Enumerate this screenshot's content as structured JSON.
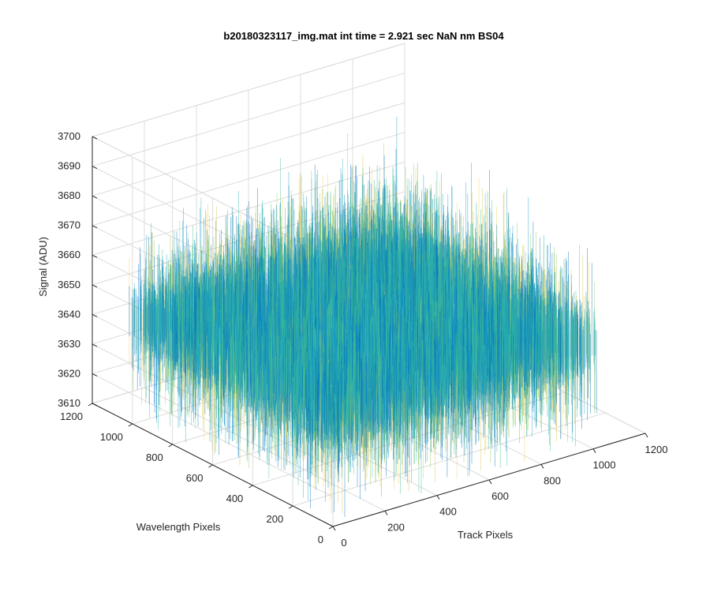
{
  "chart_data": {
    "type": "surface",
    "title": "b20180323117_img.mat int time = 2.921 sec  NaN nm BS04",
    "xlabel": "Track Pixels",
    "ylabel": "Wavelength Pixels",
    "zlabel": "Signal (ADU)",
    "xlim": [
      0,
      1200
    ],
    "ylim": [
      0,
      1200
    ],
    "zlim": [
      3610,
      3700
    ],
    "xticks": [
      "0",
      "200",
      "400",
      "600",
      "800",
      "1000",
      "1200"
    ],
    "yticks": [
      "0",
      "200",
      "400",
      "600",
      "800",
      "1000",
      "1200"
    ],
    "zticks": [
      "3610",
      "3620",
      "3630",
      "3640",
      "3650",
      "3660",
      "3670",
      "3680",
      "3690",
      "3700"
    ],
    "grid": true,
    "data_extent": {
      "x": [
        0,
        1024
      ],
      "y": [
        0,
        1024
      ]
    },
    "signal_mean": 3645,
    "signal_range": [
      3612,
      3695
    ],
    "colormap": [
      "#0072bd",
      "#1a9ec9",
      "#2ab3b0",
      "#44c08a",
      "#8fc864",
      "#d9c24a",
      "#f0d050"
    ]
  }
}
